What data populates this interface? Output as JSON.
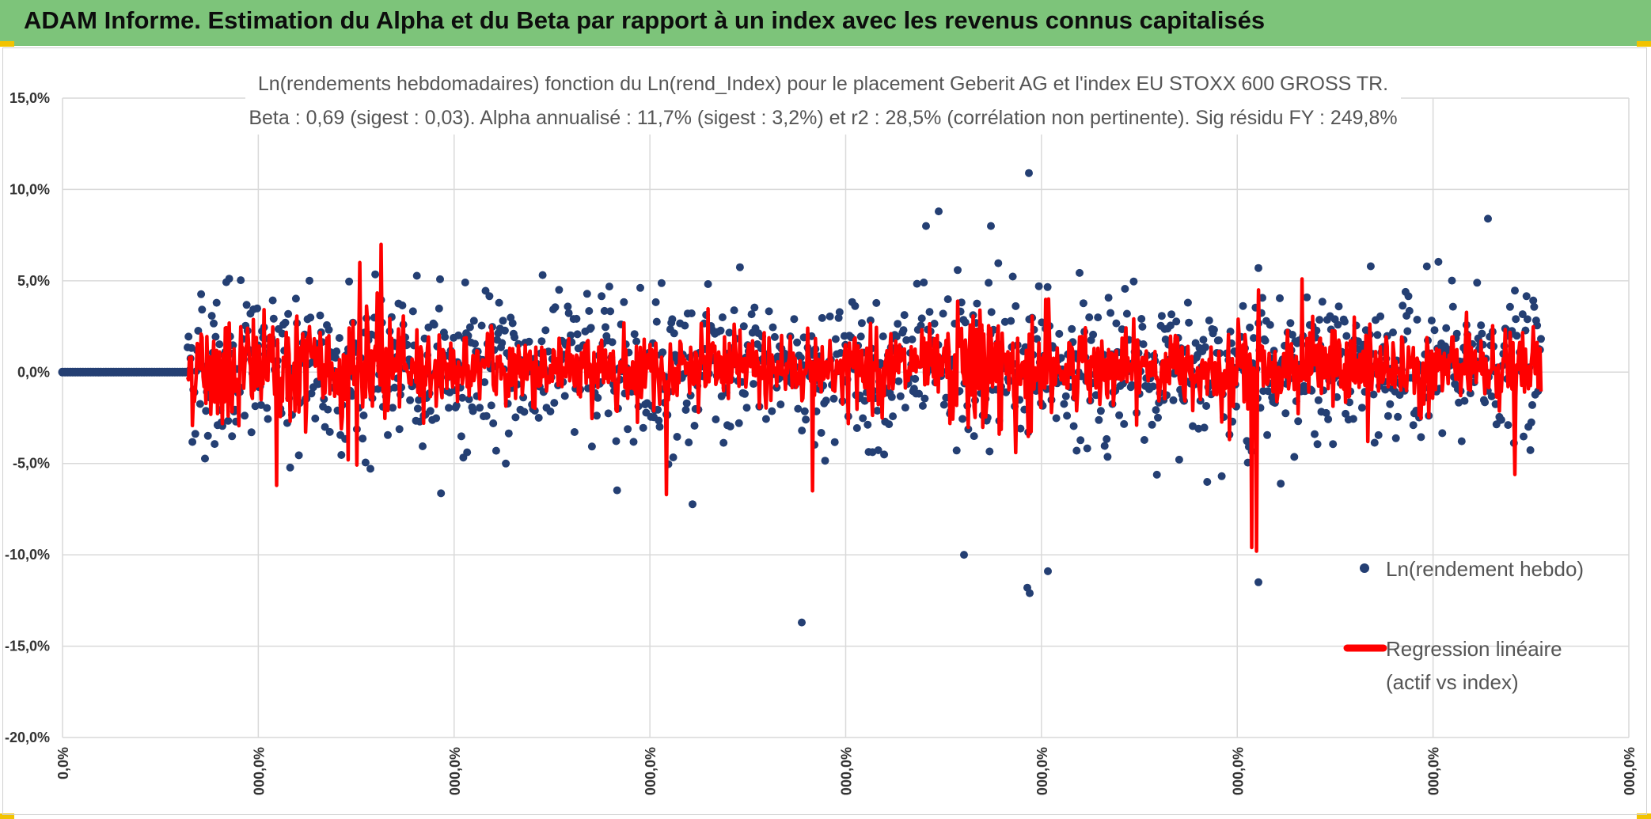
{
  "banner": {
    "title": "ADAM Informe. Estimation du Alpha et du Beta par rapport à un index avec les revenus connus capitalisés",
    "background": "#7dc47a"
  },
  "chart_data": {
    "type": "scatter",
    "title": "Ln(rendements hebdomadaires) fonction du Ln(rend_Index) pour le placement Geberit AG et l'index EU STOXX 600 GROSS TR.",
    "subtitle": "Beta : 0,69 (sigest : 0,03). Alpha annualisé : 11,7% (sigest : 3,2%) et r2 : 28,5% (corrélation non pertinente). Sig résidu FY : 249,8%",
    "ylim": [
      -20,
      15
    ],
    "y_ticks": [
      "15,0%",
      "10,0%",
      "5,0%",
      "0,0%",
      "-5,0%",
      "-10,0%",
      "-15,0%",
      "-20,0%"
    ],
    "x_ticks": [
      "0,0%",
      "000,0%",
      "000,0%",
      "000,0%",
      "000,0%",
      "000,0%",
      "000,0%",
      "000,0%",
      "000,0%"
    ],
    "grid": true,
    "legend_position": "right",
    "series": [
      {
        "name": "Ln(rendement hebdo)",
        "kind": "points",
        "color": "#243f73"
      },
      {
        "name": "Regression linéaire (actif vs index)",
        "kind": "line",
        "color": "#ff0000"
      }
    ],
    "n_zero_points": 50,
    "n_active_points": 1400,
    "notable_outliers": [
      {
        "x": 1013,
        "y": -13.7
      },
      {
        "x": 1300,
        "y": 10.9
      },
      {
        "x": 1301,
        "y": -12.1
      },
      {
        "x": 1298,
        "y": -11.8
      },
      {
        "x": 1324,
        "y": -10.9
      },
      {
        "x": 1590,
        "y": -11.5
      },
      {
        "x": 1590,
        "y": 5.7
      },
      {
        "x": 1880,
        "y": 8.4
      },
      {
        "x": 1218,
        "y": -10.0
      },
      {
        "x": 1252,
        "y": 8.0
      },
      {
        "x": 1186,
        "y": 8.8
      },
      {
        "x": 1170,
        "y": 8.0
      }
    ]
  },
  "legend": {
    "item1": "Ln(rendement hebdo)",
    "item2_line1": "Regression linéaire",
    "item2_line2": "(actif vs index)"
  }
}
